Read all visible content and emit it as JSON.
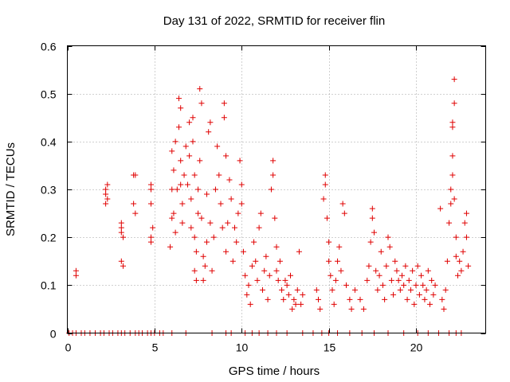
{
  "chart_data": {
    "type": "scatter",
    "title": "Day 131 of 2022, SRMTID for receiver flin",
    "xlabel": "GPS time / hours",
    "ylabel": "SRMTID / TECUs",
    "xlim": [
      0,
      24
    ],
    "ylim": [
      0,
      0.6
    ],
    "xticks": [
      0,
      5,
      10,
      15,
      20
    ],
    "yticks": [
      0,
      0.1,
      0.2,
      0.3,
      0.4,
      0.5,
      0.6
    ],
    "xtick_labels": [
      "0",
      "5",
      "10",
      "15",
      "20"
    ],
    "ytick_labels": [
      "0",
      "0.1",
      "0.2",
      "0.3",
      "0.4",
      "0.5",
      "0.6"
    ],
    "grid": true,
    "marker": "+",
    "series": [
      {
        "name": "SRMTID",
        "color": "#e00000",
        "points": [
          [
            0.5,
            0.12
          ],
          [
            0.5,
            0.13
          ],
          [
            2.2,
            0.3
          ],
          [
            2.2,
            0.29
          ],
          [
            2.3,
            0.28
          ],
          [
            2.2,
            0.27
          ],
          [
            2.3,
            0.31
          ],
          [
            3.1,
            0.23
          ],
          [
            3.1,
            0.22
          ],
          [
            3.2,
            0.2
          ],
          [
            3.1,
            0.15
          ],
          [
            3.2,
            0.14
          ],
          [
            3.1,
            0.21
          ],
          [
            3.8,
            0.33
          ],
          [
            3.9,
            0.33
          ],
          [
            3.8,
            0.27
          ],
          [
            3.9,
            0.25
          ],
          [
            4.8,
            0.31
          ],
          [
            4.8,
            0.3
          ],
          [
            4.8,
            0.27
          ],
          [
            4.9,
            0.22
          ],
          [
            4.8,
            0.2
          ],
          [
            4.8,
            0.19
          ],
          [
            5.9,
            0.18
          ],
          [
            6.0,
            0.24
          ],
          [
            6.0,
            0.3
          ],
          [
            6.1,
            0.34
          ],
          [
            6.0,
            0.38
          ],
          [
            6.2,
            0.4
          ],
          [
            6.1,
            0.25
          ],
          [
            6.2,
            0.21
          ],
          [
            6.3,
            0.3
          ],
          [
            6.4,
            0.43
          ],
          [
            6.4,
            0.49
          ],
          [
            6.5,
            0.36
          ],
          [
            6.5,
            0.31
          ],
          [
            6.6,
            0.27
          ],
          [
            6.5,
            0.47
          ],
          [
            6.6,
            0.23
          ],
          [
            6.7,
            0.33
          ],
          [
            6.8,
            0.39
          ],
          [
            6.9,
            0.31
          ],
          [
            7.0,
            0.44
          ],
          [
            7.0,
            0.37
          ],
          [
            7.1,
            0.28
          ],
          [
            7.1,
            0.22
          ],
          [
            7.2,
            0.45
          ],
          [
            7.2,
            0.4
          ],
          [
            7.3,
            0.33
          ],
          [
            7.3,
            0.2
          ],
          [
            7.3,
            0.13
          ],
          [
            7.4,
            0.11
          ],
          [
            7.4,
            0.17
          ],
          [
            7.5,
            0.25
          ],
          [
            7.5,
            0.3
          ],
          [
            7.6,
            0.51
          ],
          [
            7.6,
            0.36
          ],
          [
            7.7,
            0.48
          ],
          [
            7.7,
            0.24
          ],
          [
            7.8,
            0.16
          ],
          [
            7.8,
            0.11
          ],
          [
            7.9,
            0.14
          ],
          [
            8.0,
            0.19
          ],
          [
            8.0,
            0.29
          ],
          [
            8.1,
            0.42
          ],
          [
            8.2,
            0.44
          ],
          [
            8.2,
            0.23
          ],
          [
            8.3,
            0.13
          ],
          [
            8.4,
            0.2
          ],
          [
            8.5,
            0.3
          ],
          [
            8.6,
            0.39
          ],
          [
            8.7,
            0.33
          ],
          [
            8.8,
            0.27
          ],
          [
            8.9,
            0.22
          ],
          [
            9.0,
            0.48
          ],
          [
            9.0,
            0.45
          ],
          [
            9.1,
            0.37
          ],
          [
            9.1,
            0.17
          ],
          [
            9.2,
            0.23
          ],
          [
            9.3,
            0.32
          ],
          [
            9.4,
            0.28
          ],
          [
            9.5,
            0.15
          ],
          [
            9.6,
            0.22
          ],
          [
            9.7,
            0.19
          ],
          [
            9.8,
            0.25
          ],
          [
            9.9,
            0.36
          ],
          [
            10.0,
            0.31
          ],
          [
            10.0,
            0.27
          ],
          [
            10.1,
            0.17
          ],
          [
            10.2,
            0.12
          ],
          [
            10.3,
            0.08
          ],
          [
            10.4,
            0.1
          ],
          [
            10.5,
            0.06
          ],
          [
            10.6,
            0.14
          ],
          [
            10.7,
            0.19
          ],
          [
            10.8,
            0.15
          ],
          [
            10.9,
            0.11
          ],
          [
            11.0,
            0.22
          ],
          [
            11.1,
            0.25
          ],
          [
            11.2,
            0.09
          ],
          [
            11.3,
            0.13
          ],
          [
            11.4,
            0.16
          ],
          [
            11.5,
            0.07
          ],
          [
            11.6,
            0.12
          ],
          [
            11.7,
            0.3
          ],
          [
            11.8,
            0.36
          ],
          [
            11.8,
            0.33
          ],
          [
            11.9,
            0.24
          ],
          [
            12.0,
            0.18
          ],
          [
            12.0,
            0.13
          ],
          [
            12.1,
            0.11
          ],
          [
            12.2,
            0.15
          ],
          [
            12.3,
            0.09
          ],
          [
            12.4,
            0.07
          ],
          [
            12.5,
            0.11
          ],
          [
            12.6,
            0.1
          ],
          [
            12.7,
            0.08
          ],
          [
            12.8,
            0.12
          ],
          [
            12.9,
            0.05
          ],
          [
            13.0,
            0.07
          ],
          [
            13.1,
            0.06
          ],
          [
            13.2,
            0.09
          ],
          [
            13.3,
            0.17
          ],
          [
            13.4,
            0.06
          ],
          [
            13.5,
            0.08
          ],
          [
            14.3,
            0.09
          ],
          [
            14.4,
            0.07
          ],
          [
            14.5,
            0.05
          ],
          [
            14.7,
            0.28
          ],
          [
            14.8,
            0.33
          ],
          [
            14.8,
            0.31
          ],
          [
            14.9,
            0.24
          ],
          [
            15.0,
            0.19
          ],
          [
            15.0,
            0.15
          ],
          [
            15.1,
            0.12
          ],
          [
            15.2,
            0.09
          ],
          [
            15.3,
            0.06
          ],
          [
            15.4,
            0.11
          ],
          [
            15.5,
            0.15
          ],
          [
            15.6,
            0.18
          ],
          [
            15.7,
            0.13
          ],
          [
            15.8,
            0.27
          ],
          [
            15.9,
            0.25
          ],
          [
            16.0,
            0.1
          ],
          [
            16.2,
            0.07
          ],
          [
            16.3,
            0.05
          ],
          [
            16.5,
            0.09
          ],
          [
            16.8,
            0.07
          ],
          [
            17.0,
            0.05
          ],
          [
            17.2,
            0.11
          ],
          [
            17.3,
            0.14
          ],
          [
            17.4,
            0.19
          ],
          [
            17.5,
            0.26
          ],
          [
            17.5,
            0.24
          ],
          [
            17.6,
            0.21
          ],
          [
            17.7,
            0.13
          ],
          [
            17.8,
            0.09
          ],
          [
            17.9,
            0.12
          ],
          [
            18.0,
            0.17
          ],
          [
            18.1,
            0.1
          ],
          [
            18.2,
            0.07
          ],
          [
            18.3,
            0.14
          ],
          [
            18.4,
            0.2
          ],
          [
            18.5,
            0.18
          ],
          [
            18.6,
            0.11
          ],
          [
            18.7,
            0.08
          ],
          [
            18.8,
            0.15
          ],
          [
            18.9,
            0.13
          ],
          [
            19.0,
            0.11
          ],
          [
            19.1,
            0.09
          ],
          [
            19.2,
            0.12
          ],
          [
            19.3,
            0.1
          ],
          [
            19.4,
            0.14
          ],
          [
            19.5,
            0.07
          ],
          [
            19.6,
            0.11
          ],
          [
            19.7,
            0.09
          ],
          [
            19.8,
            0.13
          ],
          [
            19.9,
            0.06
          ],
          [
            20.0,
            0.1
          ],
          [
            20.1,
            0.14
          ],
          [
            20.2,
            0.08
          ],
          [
            20.3,
            0.12
          ],
          [
            20.4,
            0.1
          ],
          [
            20.5,
            0.07
          ],
          [
            20.6,
            0.09
          ],
          [
            20.7,
            0.13
          ],
          [
            20.8,
            0.06
          ],
          [
            20.9,
            0.11
          ],
          [
            21.0,
            0.08
          ],
          [
            21.1,
            0.1
          ],
          [
            21.4,
            0.26
          ],
          [
            21.5,
            0.07
          ],
          [
            21.6,
            0.05
          ],
          [
            21.7,
            0.09
          ],
          [
            21.8,
            0.15
          ],
          [
            21.9,
            0.23
          ],
          [
            22.0,
            0.27
          ],
          [
            22.0,
            0.3
          ],
          [
            22.1,
            0.33
          ],
          [
            22.1,
            0.37
          ],
          [
            22.1,
            0.44
          ],
          [
            22.2,
            0.48
          ],
          [
            22.2,
            0.53
          ],
          [
            22.1,
            0.43
          ],
          [
            22.2,
            0.28
          ],
          [
            22.3,
            0.2
          ],
          [
            22.3,
            0.16
          ],
          [
            22.4,
            0.12
          ],
          [
            22.5,
            0.15
          ],
          [
            22.6,
            0.13
          ],
          [
            22.7,
            0.17
          ],
          [
            22.8,
            0.23
          ],
          [
            22.9,
            0.25
          ],
          [
            22.9,
            0.2
          ],
          [
            23.0,
            0.14
          ],
          [
            0.1,
            0
          ],
          [
            0.3,
            0
          ],
          [
            0.5,
            0
          ],
          [
            0.8,
            0
          ],
          [
            1.0,
            0
          ],
          [
            1.3,
            0
          ],
          [
            1.6,
            0
          ],
          [
            1.9,
            0
          ],
          [
            2.1,
            0
          ],
          [
            2.4,
            0
          ],
          [
            2.6,
            0
          ],
          [
            2.9,
            0
          ],
          [
            3.1,
            0
          ],
          [
            3.3,
            0
          ],
          [
            3.6,
            0
          ],
          [
            3.9,
            0
          ],
          [
            4.1,
            0
          ],
          [
            4.3,
            0
          ],
          [
            4.6,
            0
          ],
          [
            4.8,
            0
          ],
          [
            5.0,
            0
          ],
          [
            5.3,
            0
          ],
          [
            5.5,
            0
          ],
          [
            6.0,
            0
          ],
          [
            6.8,
            0
          ],
          [
            8.3,
            0
          ],
          [
            9.1,
            0
          ],
          [
            9.4,
            0
          ],
          [
            10.2,
            0
          ],
          [
            10.6,
            0
          ],
          [
            11.0,
            0
          ],
          [
            11.5,
            0
          ],
          [
            12.0,
            0
          ],
          [
            12.6,
            0
          ],
          [
            13.5,
            0
          ],
          [
            14.1,
            0
          ],
          [
            14.6,
            0
          ],
          [
            15.0,
            0
          ],
          [
            15.5,
            0
          ],
          [
            16.2,
            0
          ],
          [
            16.9,
            0
          ],
          [
            17.6,
            0
          ],
          [
            18.4,
            0
          ],
          [
            19.3,
            0
          ],
          [
            20.1,
            0
          ],
          [
            20.7,
            0
          ],
          [
            21.3,
            0
          ],
          [
            21.9,
            0
          ],
          [
            22.3,
            0
          ],
          [
            22.6,
            0
          ]
        ]
      }
    ]
  }
}
